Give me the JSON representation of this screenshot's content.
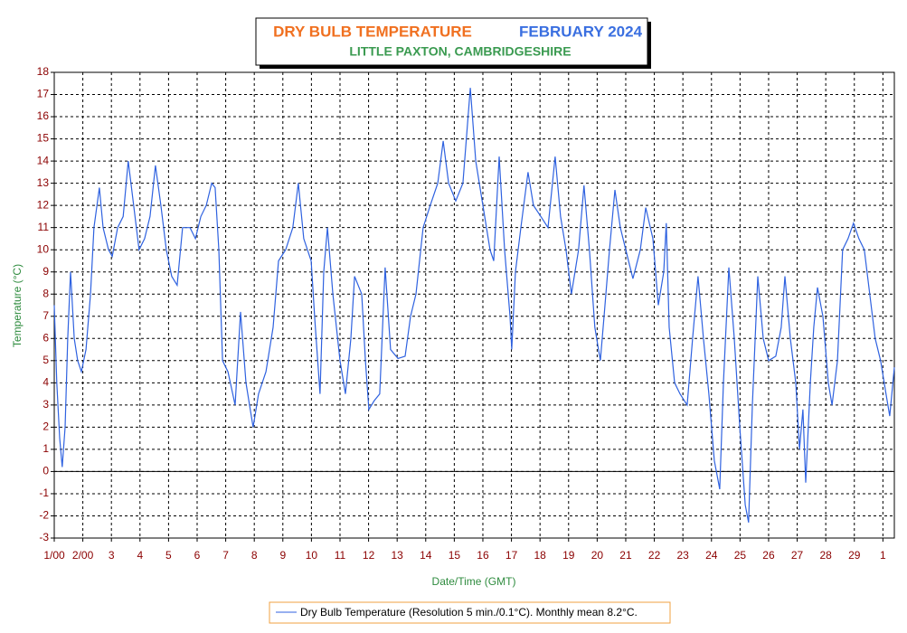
{
  "chart_data": {
    "type": "line",
    "title": "DRY BULB TEMPERATURE",
    "title_period": "FEBRUARY 2024",
    "subtitle": "LITTLE PAXTON, CAMBRIDGESHIRE",
    "x_label": "Date/Time (GMT)",
    "y_label": "Temperature (°C)",
    "xlim": [
      0,
      29.4
    ],
    "xticks": [
      {
        "value": 0,
        "label": "1/00"
      },
      {
        "value": 1,
        "label": "2/00"
      },
      {
        "value": 2,
        "label": "3"
      },
      {
        "value": 3,
        "label": "4"
      },
      {
        "value": 4,
        "label": "5"
      },
      {
        "value": 5,
        "label": "6"
      },
      {
        "value": 6,
        "label": "7"
      },
      {
        "value": 7,
        "label": "8"
      },
      {
        "value": 8,
        "label": "9"
      },
      {
        "value": 9,
        "label": "10"
      },
      {
        "value": 10,
        "label": "11"
      },
      {
        "value": 11,
        "label": "12"
      },
      {
        "value": 12,
        "label": "13"
      },
      {
        "value": 13,
        "label": "14"
      },
      {
        "value": 14,
        "label": "15"
      },
      {
        "value": 15,
        "label": "16"
      },
      {
        "value": 16,
        "label": "17"
      },
      {
        "value": 17,
        "label": "18"
      },
      {
        "value": 18,
        "label": "19"
      },
      {
        "value": 19,
        "label": "20"
      },
      {
        "value": 20,
        "label": "21"
      },
      {
        "value": 21,
        "label": "22"
      },
      {
        "value": 22,
        "label": "23"
      },
      {
        "value": 23,
        "label": "24"
      },
      {
        "value": 24,
        "label": "25"
      },
      {
        "value": 25,
        "label": "26"
      },
      {
        "value": 26,
        "label": "27"
      },
      {
        "value": 27,
        "label": "28"
      },
      {
        "value": 28,
        "label": "29"
      },
      {
        "value": 29,
        "label": "1"
      }
    ],
    "ylim": [
      -3,
      18
    ],
    "yticks": [
      -3,
      -2,
      -1,
      0,
      1,
      2,
      3,
      4,
      5,
      6,
      7,
      8,
      9,
      10,
      11,
      12,
      13,
      14,
      15,
      16,
      17,
      18
    ],
    "grid": true,
    "zero_line": true,
    "x": [
      0,
      0.09,
      0.19,
      0.28,
      0.38,
      0.47,
      0.57,
      0.7,
      0.82,
      0.95,
      1.11,
      1.27,
      1.39,
      1.58,
      1.71,
      1.9,
      2.03,
      2.22,
      2.41,
      2.59,
      2.78,
      2.97,
      3.16,
      3.35,
      3.54,
      3.73,
      3.92,
      4.11,
      4.3,
      4.49,
      4.75,
      4.94,
      5.13,
      5.32,
      5.51,
      5.63,
      5.76,
      5.89,
      6.08,
      6.33,
      6.52,
      6.71,
      6.96,
      7.15,
      7.41,
      7.66,
      7.85,
      8.1,
      8.35,
      8.54,
      8.73,
      8.99,
      9.11,
      9.3,
      9.43,
      9.56,
      9.75,
      10.0,
      10.19,
      10.38,
      10.51,
      10.76,
      10.89,
      11.01,
      11.2,
      11.39,
      11.58,
      11.77,
      12.03,
      12.28,
      12.47,
      12.66,
      12.91,
      13.16,
      13.42,
      13.61,
      13.8,
      14.05,
      14.3,
      14.56,
      14.75,
      15.0,
      15.25,
      15.38,
      15.57,
      15.76,
      15.95,
      16.01,
      16.14,
      16.33,
      16.58,
      16.77,
      17.03,
      17.28,
      17.53,
      17.72,
      17.91,
      18.1,
      18.35,
      18.54,
      18.73,
      18.92,
      19.11,
      19.24,
      19.43,
      19.62,
      19.81,
      20.0,
      20.25,
      20.51,
      20.7,
      20.95,
      21.14,
      21.33,
      21.42,
      21.52,
      21.71,
      21.9,
      22.15,
      22.34,
      22.53,
      22.72,
      22.91,
      23.1,
      23.29,
      23.42,
      23.61,
      23.8,
      23.99,
      24.18,
      24.3,
      24.43,
      24.62,
      24.81,
      25.0,
      25.25,
      25.44,
      25.57,
      25.76,
      25.95,
      26.08,
      26.2,
      26.3,
      26.46,
      26.58,
      26.71,
      26.9,
      27.09,
      27.22,
      27.41,
      27.59,
      27.78,
      27.97,
      28.16,
      28.35,
      28.54,
      28.73,
      28.92,
      29.11,
      29.24,
      29.4
    ],
    "series": [
      {
        "name": "Dry Bulb Temperature (Resolution 5 min./0.1°C). Monthly mean 8.2°C.",
        "color": "#2f62e0",
        "values": [
          7.5,
          4,
          1.5,
          0.2,
          2,
          6,
          9,
          6,
          5,
          4.5,
          5.5,
          8,
          11,
          12.8,
          11,
          10,
          9.7,
          11,
          11.5,
          14,
          12,
          10,
          10.5,
          11.5,
          13.8,
          12,
          10,
          8.8,
          8.4,
          11,
          11,
          10.5,
          11.5,
          12,
          13,
          12.8,
          10,
          5,
          4.5,
          3,
          7.2,
          4,
          2,
          3.5,
          4.5,
          6.5,
          9.5,
          10,
          11,
          13,
          10.5,
          9.5,
          7,
          3.5,
          9,
          11,
          8,
          5,
          3.5,
          6,
          8.8,
          8,
          5,
          2.8,
          3.2,
          3.5,
          9.2,
          5.5,
          5.1,
          5.2,
          7,
          8,
          11,
          12,
          13,
          14.9,
          13,
          12.2,
          13,
          17.3,
          14,
          12,
          10,
          9.5,
          14.2,
          10,
          7,
          5.5,
          9,
          11,
          13.5,
          12,
          11.5,
          11,
          14.2,
          11.5,
          10,
          8,
          10,
          12.9,
          10,
          6.5,
          5,
          7,
          10,
          12.7,
          11,
          10,
          8.7,
          10,
          11.9,
          10.5,
          7.5,
          9,
          11.2,
          6.5,
          4,
          3.5,
          3,
          6,
          8.8,
          6,
          3.5,
          0.5,
          -0.8,
          4,
          9.2,
          6,
          2,
          -1.5,
          -2.3,
          3,
          8.8,
          6,
          5,
          5.2,
          6.5,
          8.8,
          6,
          4,
          1,
          2.8,
          -0.5,
          4,
          6.5,
          8.3,
          7,
          4,
          3,
          5,
          10,
          10.5,
          11.2,
          10.5,
          10,
          8,
          6,
          5,
          3.5,
          2.5,
          4.7
        ]
      }
    ]
  }
}
